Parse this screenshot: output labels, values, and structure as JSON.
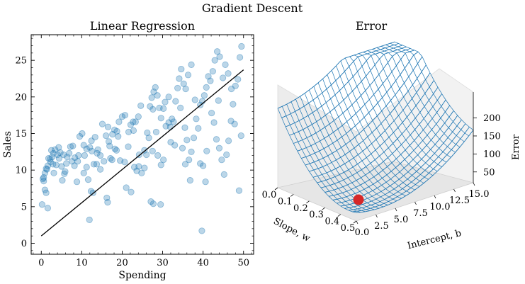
{
  "figure": {
    "suptitle": "Gradient Descent"
  },
  "chart_data": [
    {
      "type": "scatter",
      "title": "Linear Regression",
      "xlabel": "Spending",
      "ylabel": "Sales",
      "xlim": [
        -2.5,
        52.5
      ],
      "ylim": [
        -1.5,
        28.5
      ],
      "xticks": [
        0,
        10,
        20,
        30,
        40,
        50
      ],
      "yticks": [
        0,
        5,
        10,
        15,
        20,
        25
      ],
      "grid": false,
      "point_color": "#1f77b4",
      "line_color": "#000000",
      "series": [
        {
          "points": [
            [
              0.2,
              5.3
            ],
            [
              0.9,
              7.3
            ],
            [
              1.2,
              6.9
            ],
            [
              1.6,
              4.8
            ],
            [
              0.4,
              8.8
            ],
            [
              0.6,
              9.0
            ],
            [
              0.9,
              9.6
            ],
            [
              1.2,
              10.2
            ],
            [
              1.6,
              10.6
            ],
            [
              2.2,
              11.5
            ],
            [
              2.5,
              12.7
            ],
            [
              3.0,
              12.3
            ],
            [
              3.4,
              12.8
            ],
            [
              1.8,
              11.6
            ],
            [
              2.3,
              11.1
            ],
            [
              2.7,
              11.8
            ],
            [
              3.1,
              9.6
            ],
            [
              3.7,
              10.7
            ],
            [
              4.0,
              12.1
            ],
            [
              4.4,
              11.6
            ],
            [
              4.7,
              12.4
            ],
            [
              5.0,
              10.5
            ],
            [
              5.2,
              8.6
            ],
            [
              5.7,
              9.5
            ],
            [
              6.2,
              10.9
            ],
            [
              6.9,
              12.3
            ],
            [
              7.2,
              13.2
            ],
            [
              7.8,
              13.3
            ],
            [
              8.3,
              11.7
            ],
            [
              9.0,
              11.2
            ],
            [
              9.5,
              14.6
            ],
            [
              10.1,
              15.0
            ],
            [
              10.7,
              12.0
            ],
            [
              10.5,
              9.6
            ],
            [
              11.2,
              10.4
            ],
            [
              11.6,
              8.7
            ],
            [
              12.0,
              13.1
            ],
            [
              12.5,
              12.6
            ],
            [
              13.0,
              10.8
            ],
            [
              12.3,
              7.1
            ],
            [
              12.8,
              6.9
            ],
            [
              11.9,
              3.2
            ],
            [
              13.3,
              14.5
            ],
            [
              14.0,
              12.8
            ],
            [
              14.6,
              12.0
            ],
            [
              15.1,
              16.3
            ],
            [
              16.0,
              14.7
            ],
            [
              16.5,
              15.9
            ],
            [
              16.9,
              13.3
            ],
            [
              17.6,
              14.9
            ],
            [
              18.1,
              15.5
            ],
            [
              18.6,
              12.7
            ],
            [
              16.2,
              6.2
            ],
            [
              16.4,
              5.6
            ],
            [
              17.1,
              11.6
            ],
            [
              19.2,
              16.6
            ],
            [
              20.0,
              17.3
            ],
            [
              20.7,
              17.5
            ],
            [
              21.6,
              15.2
            ],
            [
              22.1,
              16.2
            ],
            [
              22.7,
              16.6
            ],
            [
              23.3,
              16.6
            ],
            [
              24.0,
              17.3
            ],
            [
              24.6,
              18.8
            ],
            [
              20.6,
              11.1
            ],
            [
              22.2,
              7.0
            ],
            [
              21.0,
              7.6
            ],
            [
              23.6,
              9.9
            ],
            [
              24.1,
              10.5
            ],
            [
              24.8,
              9.6
            ],
            [
              25.5,
              12.7
            ],
            [
              26.0,
              12.1
            ],
            [
              26.6,
              14.4
            ],
            [
              26.9,
              18.7
            ],
            [
              27.3,
              19.9
            ],
            [
              27.8,
              20.7
            ],
            [
              28.2,
              21.3
            ],
            [
              28.7,
              20.2
            ],
            [
              29.2,
              18.5
            ],
            [
              29.6,
              17.1
            ],
            [
              27.1,
              5.7
            ],
            [
              27.7,
              5.4
            ],
            [
              29.5,
              5.3
            ],
            [
              30.2,
              18.4
            ],
            [
              30.6,
              19.3
            ],
            [
              31.5,
              20.0
            ],
            [
              31.9,
              15.9
            ],
            [
              32.3,
              17.0
            ],
            [
              32.7,
              16.6
            ],
            [
              33.2,
              19.4
            ],
            [
              33.7,
              21.2
            ],
            [
              34.1,
              22.5
            ],
            [
              34.6,
              23.8
            ],
            [
              35.2,
              21.8
            ],
            [
              35.7,
              21.1
            ],
            [
              36.3,
              23.0
            ],
            [
              34.4,
              18.5
            ],
            [
              35.5,
              15.8
            ],
            [
              36.0,
              14.1
            ],
            [
              36.5,
              11.4
            ],
            [
              37.1,
              12.5
            ],
            [
              37.7,
              14.4
            ],
            [
              38.3,
              17.0
            ],
            [
              38.8,
              15.7
            ],
            [
              39.3,
              18.9
            ],
            [
              39.8,
              19.4
            ],
            [
              40.3,
              20.2
            ],
            [
              40.8,
              21.3
            ],
            [
              41.3,
              22.8
            ],
            [
              41.8,
              22.2
            ],
            [
              42.4,
              23.5
            ],
            [
              42.9,
              25.0
            ],
            [
              43.5,
              26.2
            ],
            [
              44.1,
              25.5
            ],
            [
              42.1,
              17.8
            ],
            [
              42.7,
              16.5
            ],
            [
              43.3,
              14.2
            ],
            [
              44.0,
              13.0
            ],
            [
              44.6,
              11.4
            ],
            [
              45.2,
              9.4
            ],
            [
              45.8,
              12.1
            ],
            [
              46.3,
              14.0
            ],
            [
              46.9,
              16.7
            ],
            [
              47.4,
              19.0
            ],
            [
              48.0,
              21.5
            ],
            [
              48.6,
              22.4
            ],
            [
              49.1,
              25.4
            ],
            [
              49.5,
              26.9
            ],
            [
              48.9,
              7.2
            ],
            [
              49.4,
              14.7
            ],
            [
              39.7,
              1.7
            ],
            [
              45.5,
              24.4
            ],
            [
              47.0,
              21.1
            ],
            [
              38.0,
              19.6
            ],
            [
              37.1,
              24.4
            ],
            [
              39.3,
              10.9
            ],
            [
              40.0,
              10.6
            ],
            [
              40.6,
              8.4
            ],
            [
              33.0,
              13.4
            ],
            [
              31.5,
              16.5
            ],
            [
              30.2,
              11.4
            ],
            [
              29.6,
              10.7
            ],
            [
              28.8,
              12.0
            ],
            [
              27.5,
              12.6
            ],
            [
              26.2,
              15.1
            ],
            [
              25.5,
              10.3
            ],
            [
              24.2,
              12.1
            ],
            [
              23.0,
              10.4
            ],
            [
              21.5,
              13.2
            ],
            [
              19.0,
              14.6
            ],
            [
              18.2,
              12.9
            ],
            [
              17.5,
              11.4
            ],
            [
              15.5,
              11.2
            ],
            [
              14.6,
              10.1
            ],
            [
              13.7,
              10.8
            ],
            [
              12.4,
              14.0
            ],
            [
              11.2,
              12.9
            ],
            [
              10.5,
              13.4
            ],
            [
              9.2,
              12.0
            ],
            [
              8.2,
              10.6
            ],
            [
              7.6,
              11.2
            ],
            [
              6.4,
              11.8
            ],
            [
              5.5,
              12.1
            ],
            [
              4.3,
              13.1
            ],
            [
              2.9,
              10.8
            ],
            [
              1.4,
              10.1
            ],
            [
              0.6,
              8.5
            ],
            [
              5.9,
              9.8
            ],
            [
              8.8,
              8.4
            ],
            [
              16.7,
              13.9
            ],
            [
              19.5,
              11.3
            ],
            [
              27.6,
              18.3
            ],
            [
              28.4,
              15.2
            ],
            [
              32.0,
              13.8
            ],
            [
              34.9,
              13.0
            ],
            [
              35.6,
              10.8
            ],
            [
              36.8,
              8.6
            ],
            [
              40.9,
              12.6
            ],
            [
              43.8,
              19.5
            ],
            [
              44.9,
              22.6
            ],
            [
              46.2,
              23.2
            ],
            [
              47.8,
              16.3
            ],
            [
              22.8,
              15.4
            ],
            [
              13.8,
              12.3
            ],
            [
              30.8,
              16.0
            ],
            [
              18.7,
              15.3
            ]
          ]
        }
      ],
      "fit_line": {
        "x": [
          0,
          50
        ],
        "y": [
          1.0,
          23.7
        ]
      }
    },
    {
      "type": "surface3d",
      "title": "Error",
      "xlabel": "Slope, w",
      "ylabel": "Intercept, b",
      "zlabel": "Error",
      "xticks": [
        "0.0",
        "0.1",
        "0.2",
        "0.3",
        "0.4",
        "0.5"
      ],
      "yticks": [
        "0.0",
        "2.5",
        "5.0",
        "7.5",
        "10.0",
        "12.5",
        "15.0"
      ],
      "zticks": [
        "50",
        "100",
        "150",
        "200"
      ],
      "surface_color": "#1f77b4",
      "marker": {
        "w": 0.45,
        "b": 0.0,
        "color": "#d62728"
      }
    }
  ]
}
